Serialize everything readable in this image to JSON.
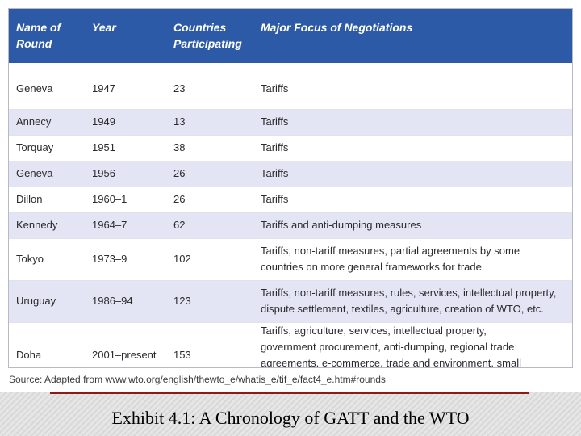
{
  "table": {
    "headers": [
      "Name of Round",
      "Year",
      "Countries Participating",
      "Major Focus of Negotiations"
    ],
    "rows": [
      [
        "Geneva",
        "1947",
        "23",
        "Tariffs"
      ],
      [
        "Annecy",
        "1949",
        "13",
        "Tariffs"
      ],
      [
        "Torquay",
        "1951",
        "38",
        "Tariffs"
      ],
      [
        "Geneva",
        "1956",
        "26",
        "Tariffs"
      ],
      [
        "Dillon",
        "1960–1",
        "26",
        "Tariffs"
      ],
      [
        "Kennedy",
        "1964–7",
        "62",
        "Tariffs and anti-dumping measures"
      ],
      [
        "Tokyo",
        "1973–9",
        "102",
        "Tariffs, non-tariff measures, partial agreements by some countries on more general frameworks for trade"
      ],
      [
        "Uruguay",
        "1986–94",
        "123",
        "Tariffs, non-tariff measures, rules, services, intellectual property, dispute settlement, textiles, agriculture, creation of WTO, etc."
      ],
      [
        "Doha",
        "2001–present",
        "153",
        "Tariffs, agriculture, services, intellectual property, government procurement, anti-dumping, regional trade agreements, e-commerce, trade and environment, small economies"
      ]
    ]
  },
  "source": "Source: Adapted from www.wto.org/english/thewto_e/whatis_e/tif_e/fact4_e.htm#rounds",
  "caption": "Exhibit 4.1:  A Chronology of GATT and the WTO",
  "colors": {
    "header_bg": "#2d5aa6",
    "stripe": "#e3e4f4",
    "rule": "#8b1a1a"
  }
}
